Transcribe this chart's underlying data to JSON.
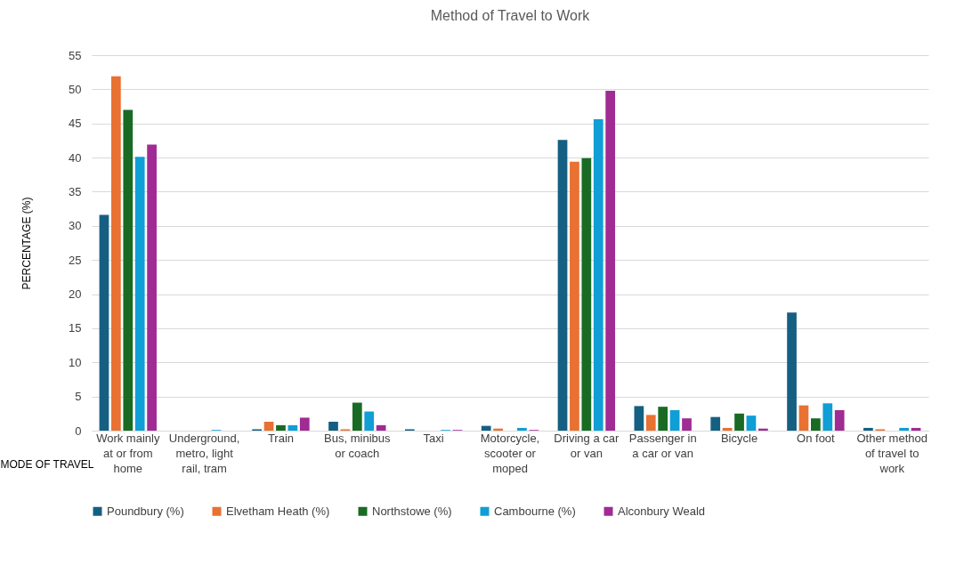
{
  "chart_data": {
    "type": "bar",
    "title": "Method of Travel to Work",
    "xlabel": "MODE OF TRAVEL",
    "ylabel": "PERCENTAGE (%)",
    "categories": [
      "Work mainly at or from home",
      "Underground, metro, light rail, tram",
      "Train",
      "Bus, minibus or coach",
      "Taxi",
      "Motorcycle, scooter or moped",
      "Driving a car or van",
      "Passenger in a car or van",
      "Bicycle",
      "On foot",
      "Other method of travel to work"
    ],
    "series": [
      {
        "name": "Poundbury (%)",
        "color": "#156082",
        "values": [
          31.6,
          0,
          0.2,
          1.3,
          0.2,
          0.7,
          42.6,
          3.6,
          2.0,
          17.3,
          0.4
        ]
      },
      {
        "name": "Elvetham Heath (%)",
        "color": "#e97132",
        "values": [
          51.9,
          0,
          1.3,
          0.2,
          0,
          0.3,
          39.4,
          2.3,
          0.4,
          3.7,
          0.2
        ]
      },
      {
        "name": "Northstowe (%)",
        "color": "#196b24",
        "values": [
          47.0,
          0,
          0.8,
          4.1,
          0,
          0,
          39.9,
          3.5,
          2.5,
          1.8,
          0
        ]
      },
      {
        "name": "Cambourne (%)",
        "color": "#0f9ed5",
        "values": [
          40.1,
          0.1,
          0.8,
          2.8,
          0.1,
          0.4,
          45.6,
          3.0,
          2.2,
          4.0,
          0.4
        ]
      },
      {
        "name": "Alconbury Weald",
        "color": "#a02b93",
        "values": [
          41.9,
          0,
          1.9,
          0.8,
          0.1,
          0.1,
          49.8,
          1.8,
          0.3,
          3.0,
          0.4
        ]
      }
    ],
    "ylim": [
      0,
      55
    ],
    "yticks": [
      0,
      5,
      10,
      15,
      20,
      25,
      30,
      35,
      40,
      45,
      50,
      55
    ],
    "grid": "y",
    "legend": "bottom"
  }
}
